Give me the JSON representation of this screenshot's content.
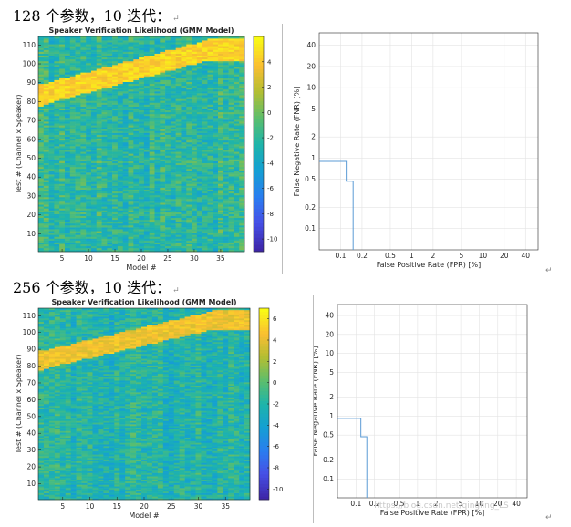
{
  "document": {
    "captions": [
      "128 个参数，10 迭代：",
      "256 个参数，10 迭代："
    ],
    "paragraph_mark": "↵",
    "watermark": "https://blog.csdn.net/qingling_LS"
  },
  "chart_data": [
    {
      "type": "heatmap",
      "title": "Speaker Verification Likelihood (GMM Model)",
      "xlabel": "Model #",
      "ylabel": "Test # (Channel x Speaker)",
      "xticks": [
        5,
        10,
        15,
        20,
        25,
        30,
        35
      ],
      "yticks": [
        10,
        20,
        30,
        40,
        50,
        60,
        70,
        80,
        90,
        100,
        110
      ],
      "xlim": [
        0.5,
        39.5
      ],
      "ylim": [
        0.5,
        114.5
      ],
      "colorbar_ticks": [
        4,
        2,
        0,
        -2,
        -4,
        -6,
        -8,
        -10
      ],
      "colorbar_range": [
        -11,
        6
      ],
      "diagonal_band": {
        "start_row": [
          78,
          89
        ],
        "end_row": [
          102,
          113
        ],
        "value": 4.5
      },
      "background_value": -2
    },
    {
      "type": "line",
      "xlabel": "False Positive Rate (FPR) [%]",
      "ylabel": "False Negative Rate (FNR) [%]",
      "xticks": [
        "0.1",
        "0.2",
        "0.5",
        "1",
        "2",
        "5",
        "10",
        "20",
        "40"
      ],
      "yticks": [
        "0.1",
        "0.2",
        "0.5",
        "1",
        "2",
        "5",
        "10",
        "20",
        "40"
      ],
      "xlim": [
        0.05,
        60
      ],
      "ylim": [
        0.05,
        60
      ],
      "series": [
        {
          "x": [
            0.05,
            0.12,
            0.12,
            0.15,
            0.15,
            0.15
          ],
          "y": [
            0.9,
            0.9,
            0.47,
            0.47,
            0.05,
            0.05
          ]
        }
      ],
      "color": "#5b9bd5"
    },
    {
      "type": "heatmap",
      "title": "Speaker Verification Likelihood (GMM Model)",
      "xlabel": "Model #",
      "ylabel": "Test # (Channel x Speaker)",
      "xticks": [
        5,
        10,
        15,
        20,
        25,
        30,
        35
      ],
      "yticks": [
        10,
        20,
        30,
        40,
        50,
        60,
        70,
        80,
        90,
        100,
        110
      ],
      "xlim": [
        0.5,
        39.5
      ],
      "ylim": [
        0.5,
        114.5
      ],
      "colorbar_ticks": [
        6,
        4,
        2,
        0,
        -2,
        -4,
        -6,
        -8,
        -10
      ],
      "colorbar_range": [
        -11,
        7
      ],
      "diagonal_band": {
        "start_row": [
          78,
          89
        ],
        "end_row": [
          102,
          113
        ],
        "value": 4.5
      },
      "background_value": -2
    },
    {
      "type": "line",
      "xlabel": "False Positive Rate (FPR) [%]",
      "ylabel": "False Negative Rate (FNR) [%]",
      "xticks": [
        "0.1",
        "0.2",
        "0.5",
        "1",
        "2",
        "5",
        "10",
        "20",
        "40"
      ],
      "yticks": [
        "0.1",
        "0.2",
        "0.5",
        "1",
        "2",
        "5",
        "10",
        "20",
        "40"
      ],
      "xlim": [
        0.05,
        60
      ],
      "ylim": [
        0.05,
        60
      ],
      "series": [
        {
          "x": [
            0.05,
            0.12,
            0.12,
            0.15,
            0.15,
            0.15
          ],
          "y": [
            0.92,
            0.92,
            0.47,
            0.47,
            0.05,
            0.05
          ]
        }
      ],
      "color": "#5b9bd5"
    }
  ]
}
